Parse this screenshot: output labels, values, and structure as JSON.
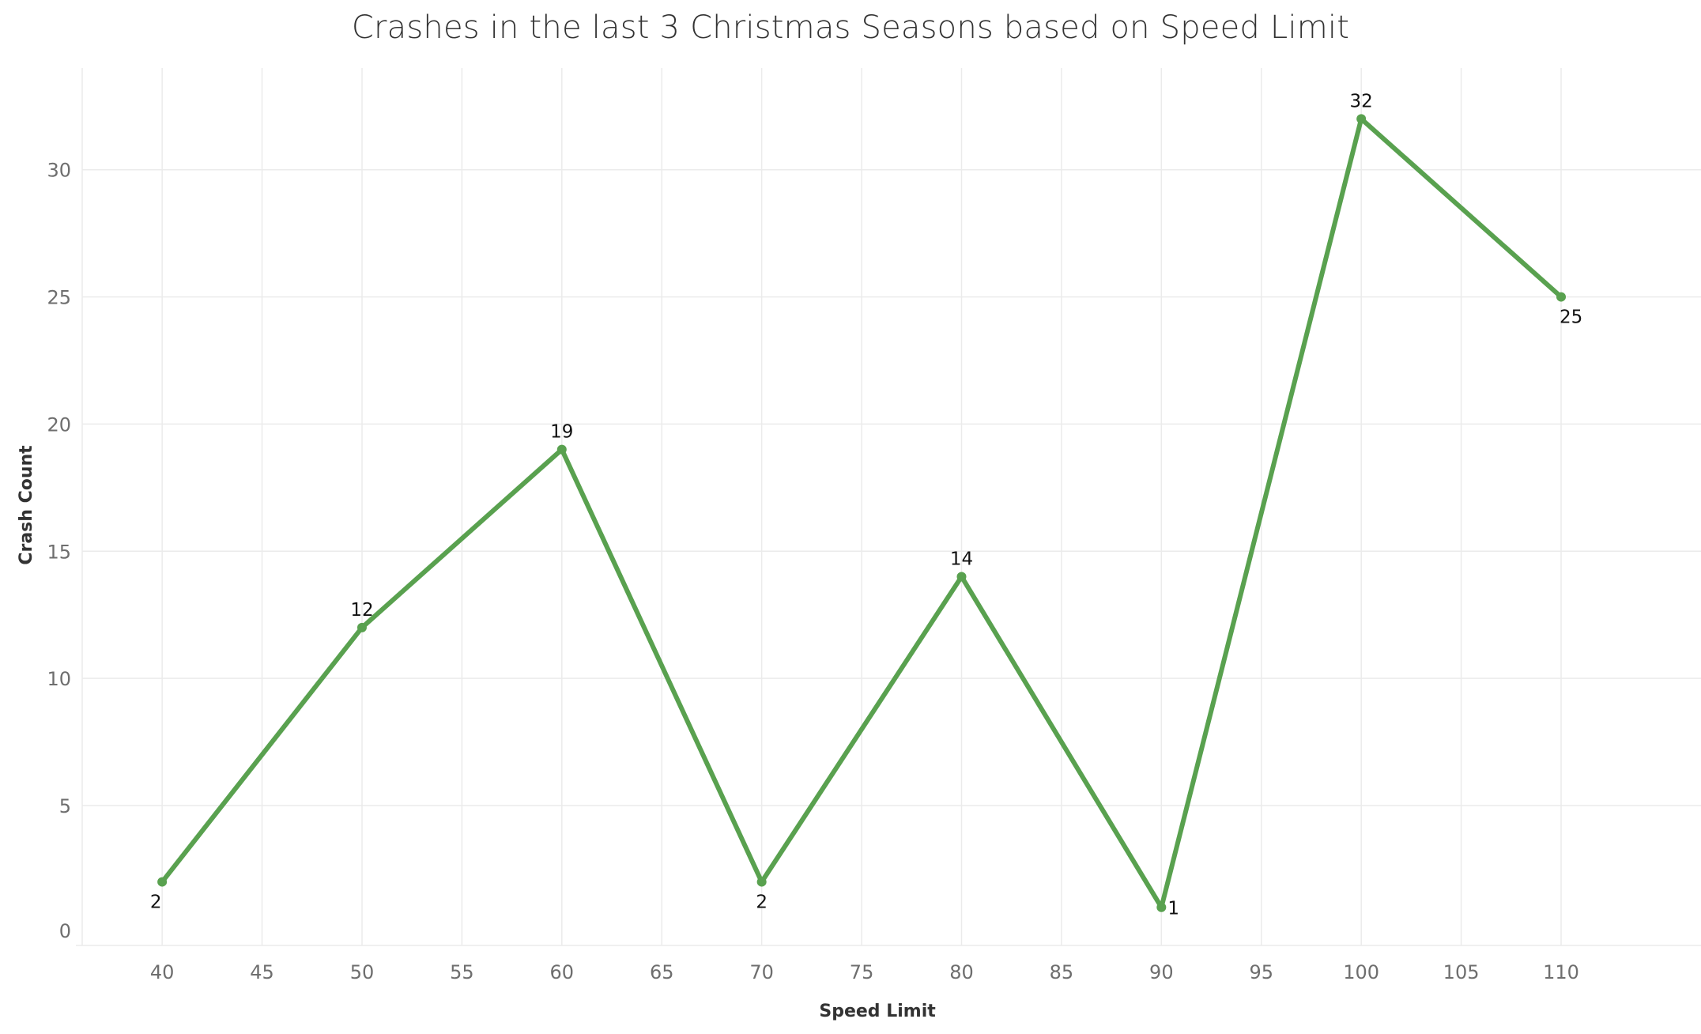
{
  "chart_data": {
    "type": "line",
    "title": "Crashes in the last 3 Christmas Seasons based on Speed Limit",
    "xlabel": "Speed Limit",
    "ylabel": "Crash Count",
    "x": [
      40,
      50,
      60,
      70,
      80,
      90,
      100,
      110
    ],
    "series": [
      {
        "values": [
          2,
          12,
          19,
          2,
          14,
          1,
          32,
          25
        ],
        "data_labels": [
          "2",
          "12",
          "19",
          "2",
          "14",
          "1",
          "32",
          "25"
        ]
      }
    ],
    "xlim": [
      36,
      117
    ],
    "ylim": [
      -0.5,
      34
    ],
    "x_ticks": [
      40,
      45,
      50,
      55,
      60,
      65,
      70,
      75,
      80,
      85,
      90,
      95,
      100,
      105,
      110
    ],
    "y_ticks": [
      0,
      5,
      10,
      15,
      20,
      25,
      30
    ],
    "grid": true,
    "legend": "none",
    "colors": {
      "line": "#59a14f",
      "grid": "#ebebeb",
      "axis_text": "#6e6e6e"
    }
  }
}
